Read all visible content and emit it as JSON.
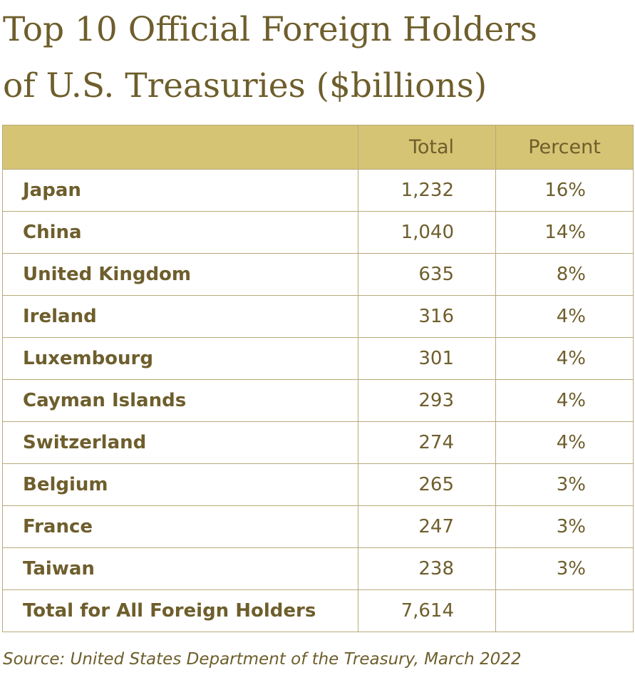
{
  "title_line1": "Top 10 Official Foreign Holders",
  "title_line2": "of U.S. Treasuries ($billions)",
  "source": "Source: United States Department of the Treasury, March 2022",
  "colors": {
    "header_fill": "#d5c474",
    "text": "#6e5e2c",
    "border": "#b9aa7a"
  },
  "chart_data": {
    "type": "table",
    "title": "Top 10 Official Foreign Holders of U.S. Treasuries ($billions)",
    "columns": [
      "",
      "Total",
      "Percent"
    ],
    "rows": [
      {
        "country": "Japan",
        "total": "1,232",
        "percent": "16%"
      },
      {
        "country": "China",
        "total": "1,040",
        "percent": "14%"
      },
      {
        "country": "United Kingdom",
        "total": "635",
        "percent": "8%"
      },
      {
        "country": "Ireland",
        "total": "316",
        "percent": "4%"
      },
      {
        "country": "Luxembourg",
        "total": "301",
        "percent": "4%"
      },
      {
        "country": "Cayman Islands",
        "total": "293",
        "percent": "4%"
      },
      {
        "country": "Switzerland",
        "total": "274",
        "percent": "4%"
      },
      {
        "country": "Belgium",
        "total": "265",
        "percent": "3%"
      },
      {
        "country": "France",
        "total": "247",
        "percent": "3%"
      },
      {
        "country": "Taiwan",
        "total": "238",
        "percent": "3%"
      }
    ],
    "total_row": {
      "country": "Total for All Foreign Holders",
      "total": "7,614",
      "percent": ""
    }
  }
}
